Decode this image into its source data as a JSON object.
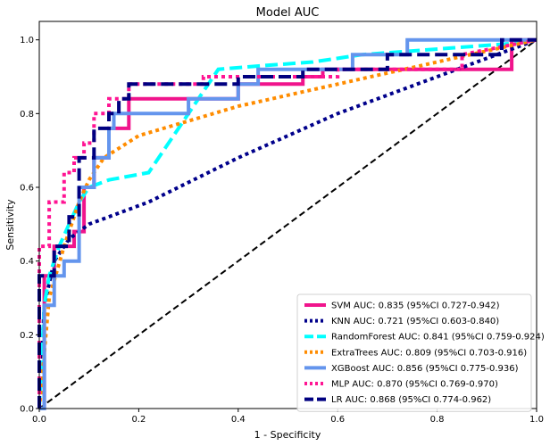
{
  "chart_data": {
    "type": "line",
    "title": "Model AUC",
    "xlabel": "1 - Specificity",
    "ylabel": "Sensitivity",
    "xlim": [
      0,
      1
    ],
    "ylim": [
      0,
      1.05
    ],
    "xticks": [
      "0.0",
      "0.2",
      "0.4",
      "0.6",
      "0.8",
      "1.0"
    ],
    "yticks": [
      "0.0",
      "0.2",
      "0.4",
      "0.6",
      "0.8",
      "1.0"
    ],
    "grid": false,
    "legend_position": "bottom-right",
    "series": [
      {
        "name": "SVM AUC: 0.835 (95%CI 0.727-0.942)",
        "color": "#f0148c",
        "style": "solid",
        "x": [
          0,
          0.01,
          0.01,
          0.03,
          0.03,
          0.07,
          0.07,
          0.09,
          0.09,
          0.11,
          0.11,
          0.14,
          0.14,
          0.18,
          0.18,
          0.4,
          0.4,
          0.53,
          0.53,
          0.57,
          0.57,
          0.78,
          0.78,
          0.95,
          0.95,
          1.0
        ],
        "y": [
          0,
          0,
          0.36,
          0.36,
          0.44,
          0.44,
          0.48,
          0.48,
          0.6,
          0.6,
          0.68,
          0.68,
          0.76,
          0.76,
          0.84,
          0.84,
          0.88,
          0.88,
          0.9,
          0.9,
          0.92,
          0.92,
          0.92,
          0.92,
          1.0,
          1.0
        ]
      },
      {
        "name": "KNN AUC: 0.721 (95%CI 0.603-0.840)",
        "color": "#00008b",
        "style": "dotted",
        "x": [
          0,
          0.01,
          0.03,
          0.06,
          0.1,
          0.22,
          0.4,
          0.6,
          0.8,
          1.0
        ],
        "y": [
          0,
          0.28,
          0.4,
          0.46,
          0.5,
          0.56,
          0.68,
          0.8,
          0.9,
          1.0
        ]
      },
      {
        "name": "RandomForest AUC: 0.841 (95%CI 0.759-0.924)",
        "color": "#00ffff",
        "style": "dashed",
        "x": [
          0,
          0.01,
          0.02,
          0.04,
          0.06,
          0.08,
          0.1,
          0.14,
          0.22,
          0.3,
          0.36,
          0.45,
          0.55,
          0.65,
          0.75,
          0.85,
          0.95,
          1.0
        ],
        "y": [
          0,
          0.28,
          0.36,
          0.44,
          0.5,
          0.56,
          0.6,
          0.62,
          0.64,
          0.8,
          0.92,
          0.93,
          0.94,
          0.96,
          0.97,
          0.98,
          0.99,
          1.0
        ]
      },
      {
        "name": "ExtraTrees AUC: 0.809 (95%CI 0.703-0.916)",
        "color": "#ff8c00",
        "style": "dotted",
        "x": [
          0,
          0.02,
          0.05,
          0.08,
          0.1,
          0.13,
          0.2,
          0.3,
          0.4,
          0.5,
          0.6,
          0.7,
          0.8,
          0.9,
          1.0
        ],
        "y": [
          0,
          0.3,
          0.44,
          0.56,
          0.62,
          0.68,
          0.74,
          0.78,
          0.82,
          0.85,
          0.88,
          0.91,
          0.94,
          0.97,
          1.0
        ]
      },
      {
        "name": "XGBoost AUC: 0.856 (95%CI 0.775-0.936)",
        "color": "#6495ed",
        "style": "solid",
        "x": [
          0,
          0.01,
          0.01,
          0.03,
          0.03,
          0.05,
          0.05,
          0.08,
          0.08,
          0.11,
          0.11,
          0.14,
          0.14,
          0.15,
          0.15,
          0.3,
          0.3,
          0.4,
          0.4,
          0.44,
          0.44,
          0.63,
          0.63,
          0.74,
          0.74,
          1.0
        ],
        "y": [
          0,
          0,
          0.28,
          0.28,
          0.36,
          0.36,
          0.4,
          0.4,
          0.6,
          0.6,
          0.68,
          0.68,
          0.76,
          0.76,
          0.8,
          0.8,
          0.84,
          0.84,
          0.88,
          0.88,
          0.92,
          0.92,
          0.96,
          0.96,
          1.0,
          1.0
        ]
      },
      {
        "name": "MLP AUC: 0.870 (95%CI 0.769-0.970)",
        "color": "#ff1493",
        "style": "dotted",
        "x": [
          0,
          0,
          0.02,
          0.02,
          0.05,
          0.05,
          0.07,
          0.07,
          0.09,
          0.09,
          0.11,
          0.11,
          0.14,
          0.14,
          0.18,
          0.18,
          0.33,
          0.33,
          0.6,
          0.6,
          0.85,
          0.85,
          1.0
        ],
        "y": [
          0,
          0.44,
          0.44,
          0.56,
          0.56,
          0.64,
          0.64,
          0.68,
          0.68,
          0.72,
          0.72,
          0.8,
          0.8,
          0.84,
          0.84,
          0.88,
          0.88,
          0.9,
          0.9,
          0.92,
          0.92,
          0.96,
          1.0
        ]
      },
      {
        "name": "LR AUC: 0.868 (95%CI 0.774-0.962)",
        "color": "#000080",
        "style": "dashed",
        "x": [
          0,
          0,
          0.03,
          0.03,
          0.06,
          0.06,
          0.08,
          0.08,
          0.11,
          0.11,
          0.14,
          0.14,
          0.16,
          0.16,
          0.18,
          0.18,
          0.4,
          0.4,
          0.53,
          0.53,
          0.7,
          0.7,
          0.93,
          0.93,
          1.0
        ],
        "y": [
          0,
          0.36,
          0.36,
          0.44,
          0.44,
          0.52,
          0.52,
          0.68,
          0.68,
          0.76,
          0.76,
          0.8,
          0.8,
          0.84,
          0.84,
          0.88,
          0.88,
          0.9,
          0.9,
          0.92,
          0.92,
          0.96,
          0.96,
          1.0,
          1.0
        ]
      }
    ],
    "reference_line": {
      "color": "#000000",
      "style": "dashed",
      "x": [
        0,
        1
      ],
      "y": [
        0,
        1
      ]
    }
  }
}
